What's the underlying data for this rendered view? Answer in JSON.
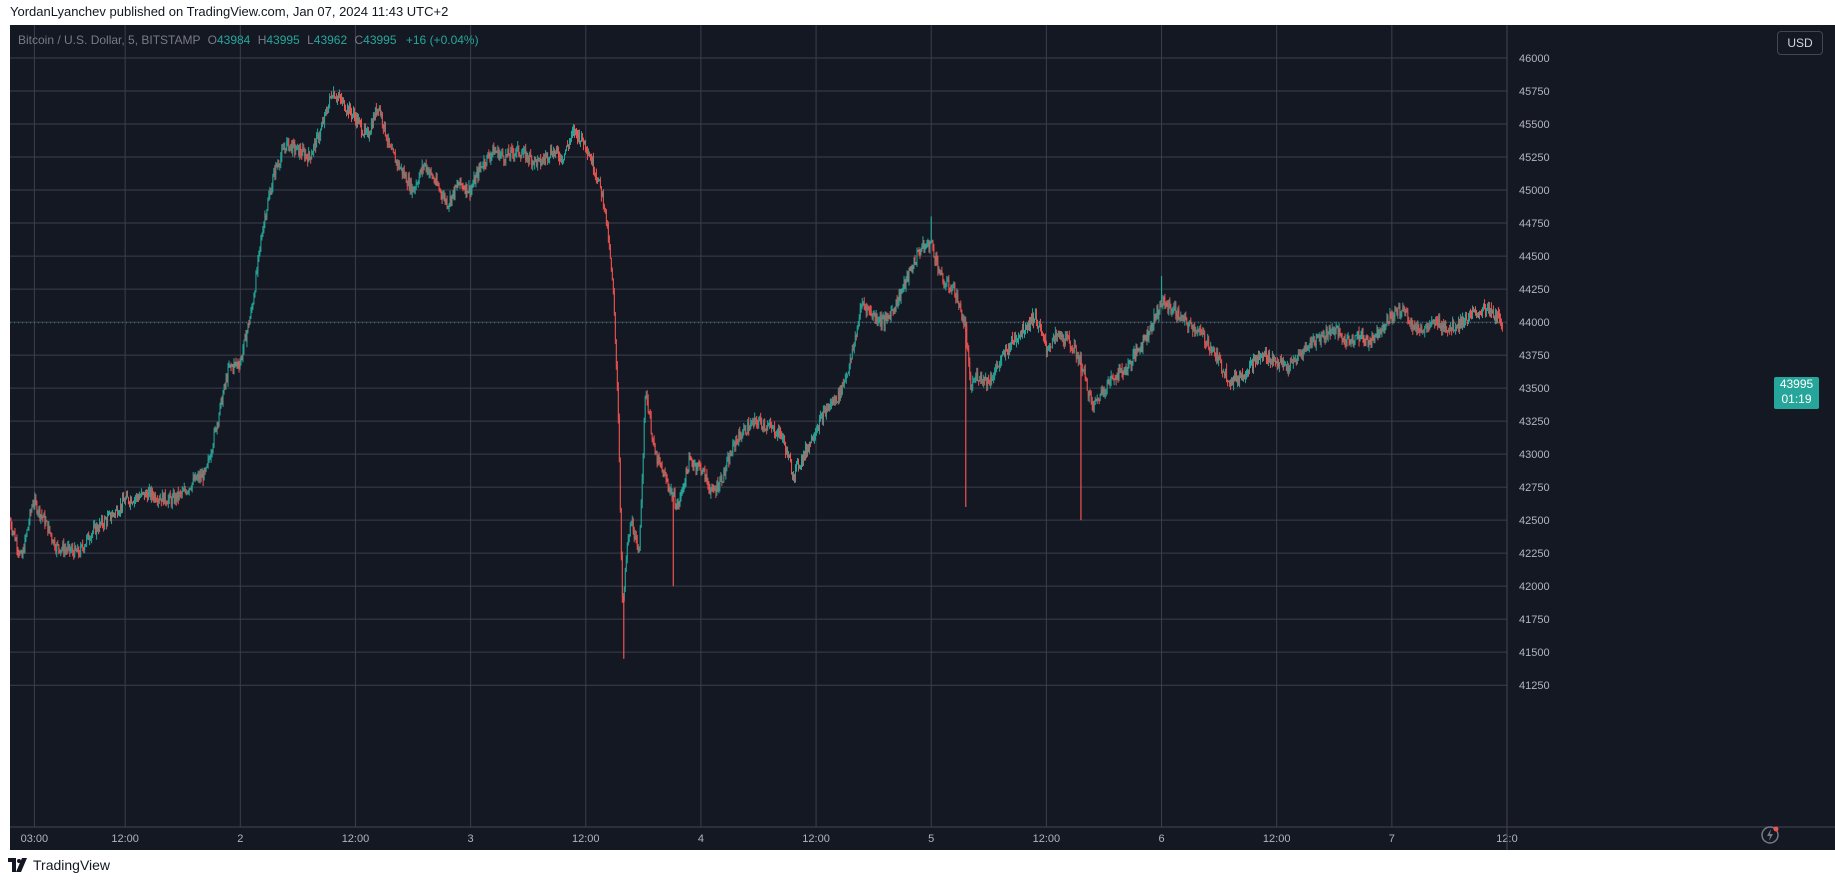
{
  "publication": {
    "text": "YordanLyanchev published on TradingView.com, Jan 07, 2024 11:43 UTC+2"
  },
  "legend": {
    "symbol": "Bitcoin / U.S. Dollar, 5, BITSTAMP",
    "o_label": "O",
    "o_value": "43984",
    "h_label": "H",
    "h_value": "43995",
    "l_label": "L",
    "l_value": "43962",
    "c_label": "C",
    "c_value": "43995",
    "change": "+16 (+0.04%)"
  },
  "currency_button": "USD",
  "last_price": {
    "price": "43995",
    "countdown": "01:19"
  },
  "footer": {
    "brand": "TradingView"
  },
  "colors": {
    "background": "#141823",
    "grid": "#3a3f4b",
    "up": "#26a69a",
    "down": "#ef5350",
    "axis_text": "#b2b5be"
  },
  "icons": [
    "tradingview-logo-icon",
    "lightning-icon"
  ],
  "chart_data": {
    "type": "line",
    "title": "",
    "xlabel": "",
    "ylabel": "",
    "ylim": [
      41100,
      46250
    ],
    "y_ticks": [
      "41250",
      "41500",
      "41750",
      "42000",
      "42250",
      "42500",
      "42750",
      "43000",
      "43250",
      "43500",
      "43750",
      "44000",
      "44250",
      "44500",
      "44750",
      "45000",
      "45250",
      "45500",
      "45750",
      "46000"
    ],
    "x_ticks": [
      {
        "label": "03:00",
        "x": 0.106
      },
      {
        "label": "12:00",
        "x": 0.5
      },
      {
        "label": "2",
        "x": 1
      },
      {
        "label": "12:00",
        "x": 1.5
      },
      {
        "label": "3",
        "x": 2
      },
      {
        "label": "12:00",
        "x": 2.5
      },
      {
        "label": "4",
        "x": 3
      },
      {
        "label": "12:00",
        "x": 3.5
      },
      {
        "label": "5",
        "x": 4
      },
      {
        "label": "12:00",
        "x": 4.5
      },
      {
        "label": "6",
        "x": 5
      },
      {
        "label": "12:00",
        "x": 5.5
      },
      {
        "label": "7",
        "x": 6
      },
      {
        "label": "12:0",
        "x": 6.5
      }
    ],
    "x_range": [
      0,
      6.5
    ],
    "x_unit": "days (1 = Jan 2)",
    "series": [
      {
        "values": [
          [
            0,
            42500
          ],
          [
            0.05,
            42200
          ],
          [
            0.1,
            42650
          ],
          [
            0.15,
            42500
          ],
          [
            0.2,
            42300
          ],
          [
            0.3,
            42250
          ],
          [
            0.35,
            42400
          ],
          [
            0.45,
            42550
          ],
          [
            0.5,
            42650
          ],
          [
            0.6,
            42700
          ],
          [
            0.7,
            42650
          ],
          [
            0.75,
            42700
          ],
          [
            0.8,
            42800
          ],
          [
            0.85,
            42850
          ],
          [
            0.9,
            43250
          ],
          [
            0.95,
            43650
          ],
          [
            1.0,
            43700
          ],
          [
            1.05,
            44100
          ],
          [
            1.1,
            44750
          ],
          [
            1.15,
            45150
          ],
          [
            1.2,
            45350
          ],
          [
            1.25,
            45300
          ],
          [
            1.3,
            45250
          ],
          [
            1.35,
            45450
          ],
          [
            1.4,
            45750
          ],
          [
            1.45,
            45650
          ],
          [
            1.5,
            45550
          ],
          [
            1.55,
            45400
          ],
          [
            1.6,
            45650
          ],
          [
            1.65,
            45300
          ],
          [
            1.7,
            45150
          ],
          [
            1.75,
            45000
          ],
          [
            1.8,
            45200
          ],
          [
            1.85,
            45050
          ],
          [
            1.9,
            44900
          ],
          [
            1.95,
            45050
          ],
          [
            2.0,
            45000
          ],
          [
            2.05,
            45200
          ],
          [
            2.1,
            45300
          ],
          [
            2.15,
            45250
          ],
          [
            2.2,
            45300
          ],
          [
            2.3,
            45200
          ],
          [
            2.35,
            45300
          ],
          [
            2.4,
            45250
          ],
          [
            2.45,
            45450
          ],
          [
            2.5,
            45350
          ],
          [
            2.55,
            45100
          ],
          [
            2.58,
            44900
          ],
          [
            2.6,
            44600
          ],
          [
            2.62,
            44200
          ],
          [
            2.64,
            43400
          ],
          [
            2.66,
            41800
          ],
          [
            2.68,
            42300
          ],
          [
            2.7,
            42500
          ],
          [
            2.73,
            42200
          ],
          [
            2.76,
            43500
          ],
          [
            2.8,
            43000
          ],
          [
            2.85,
            42800
          ],
          [
            2.9,
            42600
          ],
          [
            2.95,
            42950
          ],
          [
            3.0,
            42900
          ],
          [
            3.05,
            42700
          ],
          [
            3.1,
            42850
          ],
          [
            3.15,
            43100
          ],
          [
            3.2,
            43200
          ],
          [
            3.25,
            43250
          ],
          [
            3.3,
            43200
          ],
          [
            3.35,
            43150
          ],
          [
            3.4,
            42850
          ],
          [
            3.45,
            43000
          ],
          [
            3.5,
            43200
          ],
          [
            3.55,
            43350
          ],
          [
            3.6,
            43450
          ],
          [
            3.65,
            43700
          ],
          [
            3.7,
            44150
          ],
          [
            3.75,
            44050
          ],
          [
            3.8,
            44000
          ],
          [
            3.85,
            44150
          ],
          [
            3.9,
            44350
          ],
          [
            3.95,
            44550
          ],
          [
            4.0,
            44600
          ],
          [
            4.05,
            44300
          ],
          [
            4.1,
            44250
          ],
          [
            4.15,
            43950
          ],
          [
            4.17,
            43500
          ],
          [
            4.2,
            43600
          ],
          [
            4.25,
            43550
          ],
          [
            4.3,
            43700
          ],
          [
            4.35,
            43850
          ],
          [
            4.4,
            43950
          ],
          [
            4.45,
            44050
          ],
          [
            4.5,
            43800
          ],
          [
            4.55,
            43900
          ],
          [
            4.6,
            43850
          ],
          [
            4.65,
            43700
          ],
          [
            4.7,
            43350
          ],
          [
            4.75,
            43500
          ],
          [
            4.8,
            43600
          ],
          [
            4.85,
            43650
          ],
          [
            4.9,
            43800
          ],
          [
            4.95,
            43950
          ],
          [
            5.0,
            44150
          ],
          [
            5.05,
            44100
          ],
          [
            5.1,
            44000
          ],
          [
            5.15,
            43950
          ],
          [
            5.2,
            43850
          ],
          [
            5.25,
            43700
          ],
          [
            5.3,
            43550
          ],
          [
            5.35,
            43600
          ],
          [
            5.4,
            43700
          ],
          [
            5.45,
            43750
          ],
          [
            5.5,
            43700
          ],
          [
            5.55,
            43650
          ],
          [
            5.6,
            43750
          ],
          [
            5.65,
            43850
          ],
          [
            5.7,
            43900
          ],
          [
            5.75,
            43950
          ],
          [
            5.8,
            43850
          ],
          [
            5.85,
            43900
          ],
          [
            5.9,
            43850
          ],
          [
            5.95,
            43950
          ],
          [
            6.0,
            44050
          ],
          [
            6.05,
            44100
          ],
          [
            6.1,
            43950
          ],
          [
            6.15,
            43950
          ],
          [
            6.2,
            44000
          ],
          [
            6.25,
            43950
          ],
          [
            6.3,
            44000
          ],
          [
            6.35,
            44050
          ],
          [
            6.4,
            44100
          ],
          [
            6.45,
            44050
          ],
          [
            6.48,
            43995
          ]
        ]
      }
    ],
    "spikes": [
      {
        "x": 2.665,
        "low": 41450
      },
      {
        "x": 2.88,
        "low": 42000
      },
      {
        "x": 4.15,
        "low": 42600
      },
      {
        "x": 4.65,
        "low": 42500
      },
      {
        "x": 5.0,
        "high": 44350
      },
      {
        "x": 4.0,
        "high": 44800
      }
    ],
    "last_value": 43995
  }
}
